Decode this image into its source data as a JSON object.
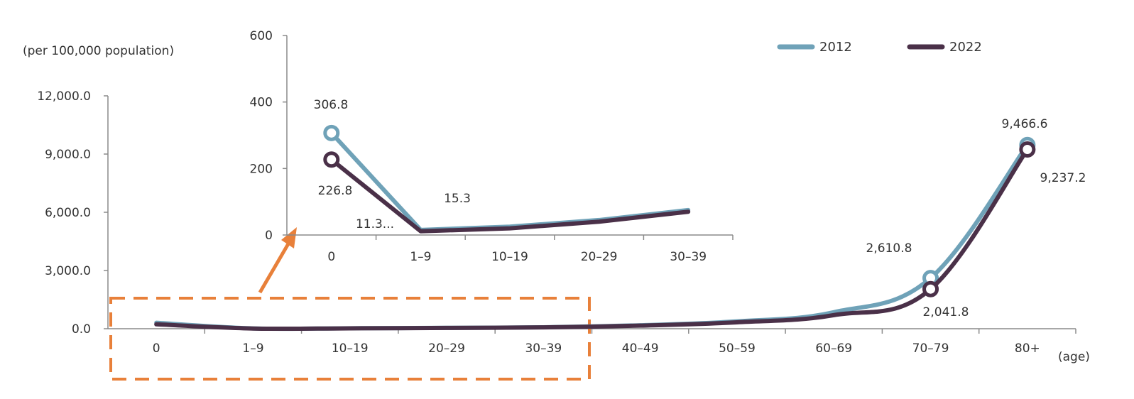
{
  "chart_data": [
    {
      "type": "line",
      "ylabel": "(per 100,000 population)",
      "xlabel": "(age)",
      "categories": [
        "0",
        "1–9",
        "10–19",
        "20–29",
        "30–39",
        "40–49",
        "50–59",
        "60–69",
        "70–79",
        "80+"
      ],
      "yticks": [
        "0.0",
        "3,000.0",
        "6,000.0",
        "9,000.0",
        "12,000.0"
      ],
      "ylim": [
        0,
        12000
      ],
      "legend": "top-right",
      "series": [
        {
          "name": "2012",
          "color": "#6fa2b8",
          "values": [
            306.8,
            15.3,
            25,
            45,
            75,
            180,
            380,
            850,
            2610.8,
            9466.6
          ]
        },
        {
          "name": "2022",
          "color": "#4a3048",
          "values": [
            226.8,
            11.3,
            20,
            40,
            70,
            160,
            330,
            700,
            2041.8,
            9237.2
          ]
        }
      ],
      "annotations": [
        "2,610.8",
        "2,041.8",
        "9,466.6",
        "9,237.2"
      ]
    },
    {
      "type": "line",
      "categories": [
        "0",
        "1–9",
        "10–19",
        "20–29",
        "30–39"
      ],
      "yticks": [
        "0",
        "200",
        "400",
        "600"
      ],
      "ylim": [
        0,
        600
      ],
      "series": [
        {
          "name": "2012",
          "color": "#6fa2b8",
          "values": [
            306.8,
            15.3,
            25,
            45,
            75
          ]
        },
        {
          "name": "2022",
          "color": "#4a3048",
          "values": [
            226.8,
            11.3,
            20,
            40,
            70
          ]
        }
      ],
      "annotations": [
        "306.8",
        "226.8",
        "15.3",
        "11.3..."
      ]
    }
  ]
}
